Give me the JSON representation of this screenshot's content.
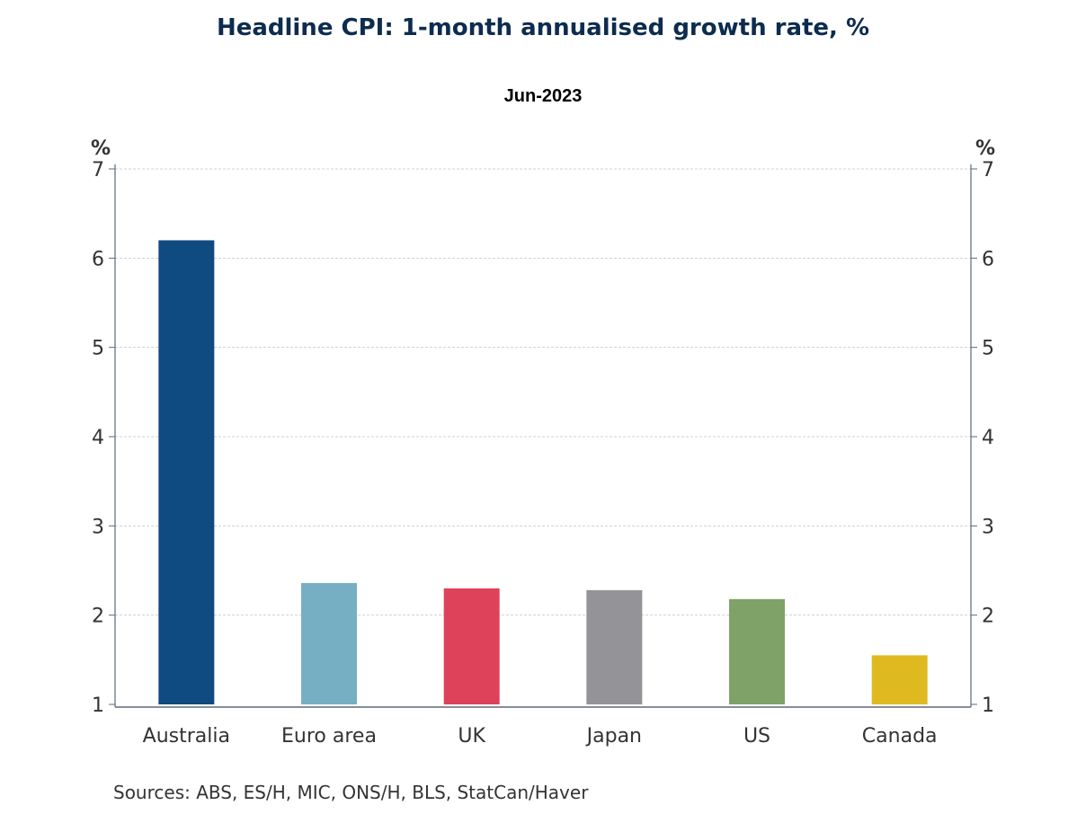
{
  "chart_data": {
    "type": "bar",
    "title": "Headline CPI: 1-month annualised growth rate, %",
    "subtitle": "Jun-2023",
    "categories": [
      "Australia",
      "Euro area",
      "UK",
      "Japan",
      "US",
      "Canada"
    ],
    "values": [
      6.2,
      2.36,
      2.3,
      2.28,
      2.18,
      1.55
    ],
    "colors": [
      "#0f4a80",
      "#76afc4",
      "#de425b",
      "#939398",
      "#7ea268",
      "#dfb920"
    ],
    "ylabel_left": "%",
    "ylabel_right": "%",
    "ylim": [
      1,
      7
    ],
    "yticks": [
      1,
      2,
      3,
      4,
      5,
      6,
      7
    ],
    "grid": true,
    "source": "Sources:  ABS, ES/H, MIC, ONS/H, BLS, StatCan/Haver"
  }
}
